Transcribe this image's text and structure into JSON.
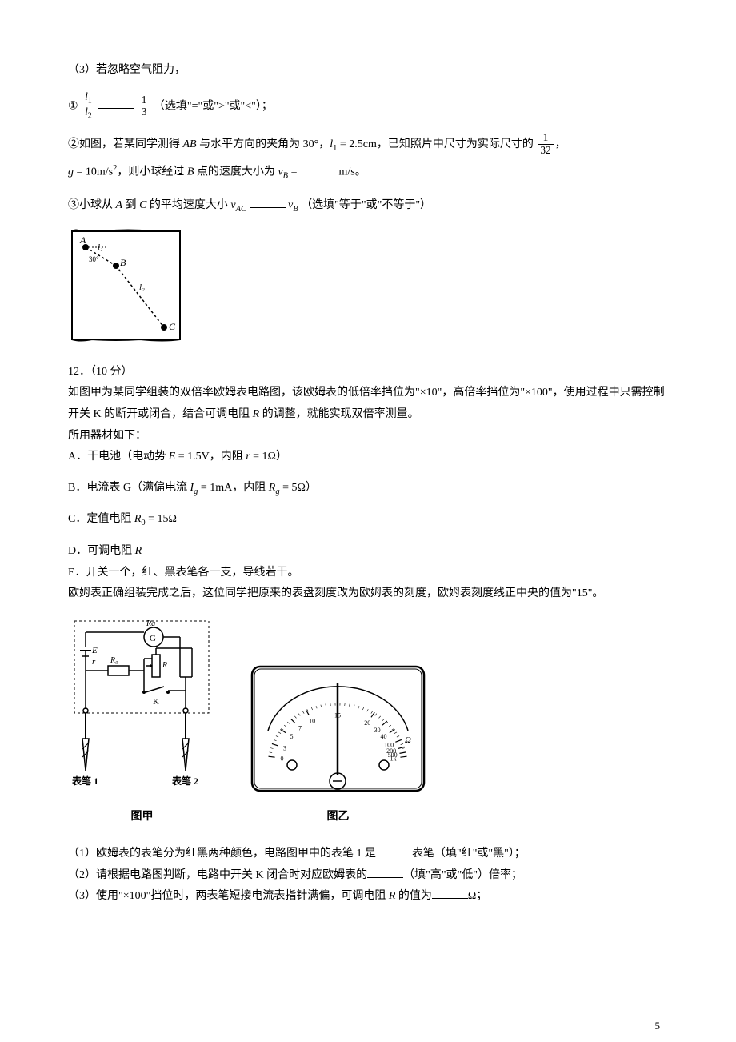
{
  "line3": "（3）若忽略空气阻力，",
  "eq1_prefix": "①",
  "eq1_frac1_num": "l",
  "eq1_frac1_num_sub": "1",
  "eq1_frac1_den": "l",
  "eq1_frac1_den_sub": "2",
  "eq1_frac2_num": "1",
  "eq1_frac2_den": "3",
  "eq1_suffix": "（选填\"=\"或\">\"或\"<\"）；",
  "line2a": "②如图，若某同学测得 ",
  "line2a_ab": "AB",
  "line2a_mid": " 与水平方向的夹角为 30°，",
  "line2a_l1": "l",
  "line2a_l1_sub": "1",
  "line2a_eq": " = 2.5cm",
  "line2a_mid2": "，已知照片中尺寸为实际尺寸的 ",
  "line2a_frac_num": "1",
  "line2a_frac_den": "32",
  "line2a_comma": "，",
  "line2b_g": "g",
  "line2b_geq": " = 10m/s",
  "line2b_gexp": "2",
  "line2b_mid": "，则小球经过 ",
  "line2b_B": "B",
  "line2b_mid2": " 点的速度大小为 ",
  "line2b_vB": "v",
  "line2b_vB_sub": "B",
  "line2b_eq": " = ",
  "line2b_unit": " m/s。",
  "line3a": "③小球从 ",
  "line3a_A": "A",
  "line3a_mid1": " 到 ",
  "line3a_C": "C",
  "line3a_mid2": " 的平均速度大小 ",
  "line3a_vAC": "v",
  "line3a_vAC_sub": "AC",
  "line3a_vB": "v",
  "line3a_vB_sub": "B",
  "line3a_suffix": "（选填\"等于\"或\"不等于\"）",
  "fig1_A": "A",
  "fig1_B": "B",
  "fig1_C": "C",
  "fig1_l1": "l₁",
  "fig1_l2": "l₂",
  "fig1_angle": "30°",
  "q12_title": "12．（10 分）",
  "q12_p1": "如图甲为某同学组装的双倍率欧姆表电路图，该欧姆表的低倍率挡位为\"×10\"，高倍率挡位为\"×100\"，使用过程中只需控制开关 K 的断开或闭合，结合可调电阻 ",
  "q12_p1_R": "R",
  "q12_p1_suffix": " 的调整，就能实现双倍率测量。",
  "q12_p2": "所用器材如下：",
  "q12_A": "A．干电池（电动势 ",
  "q12_A_E": "E",
  "q12_A_Eval": " = 1.5V",
  "q12_A_mid": "，内阻 ",
  "q12_A_r": "r",
  "q12_A_rval": " = 1Ω",
  "q12_A_end": "）",
  "q12_B": "B．电流表 G（满偏电流 ",
  "q12_B_Ig": "I",
  "q12_B_Ig_sub": "g",
  "q12_B_Ival": " = 1mA",
  "q12_B_mid": "，内阻 ",
  "q12_B_Rg": "R",
  "q12_B_Rg_sub": "g",
  "q12_B_Rval": " = 5Ω",
  "q12_B_end": "）",
  "q12_C": "C．定值电阻 ",
  "q12_C_R0": "R",
  "q12_C_R0_sub": "0",
  "q12_C_val": " = 15Ω",
  "q12_D": "D．可调电阻 ",
  "q12_D_R": "R",
  "q12_E": "E．开关一个，红、黑表笔各一支，导线若干。",
  "q12_p3": "欧姆表正确组装完成之后，这位同学把原来的表盘刻度改为欧姆表的刻度，欧姆表刻度线正中央的值为\"15\"。",
  "fig2_label1": "图甲",
  "fig2_label2": "图乙",
  "fig2_pen1": "表笔 1",
  "fig2_pen2": "表笔 2",
  "fig2_E": "E",
  "fig2_r": "r",
  "fig2_R0": "R₀",
  "fig2_R": "R",
  "fig2_Rg": "Rg",
  "fig2_G": "G",
  "fig2_K": "K",
  "dial_ticks": [
    "1k",
    "500",
    "200",
    "100",
    "40",
    "30",
    "20",
    "15",
    "10",
    "7",
    "5",
    "3",
    "0"
  ],
  "dial_unit": "Ω",
  "q12_q1a": "（1）欧姆表的表笔分为红黑两种颜色，电路图甲中的表笔 1 是",
  "q12_q1b": "表笔（填\"红\"或\"黑\"）；",
  "q12_q2a": "（2）请根据电路图判断，电路中开关 K 闭合时对应欧姆表的",
  "q12_q2b": "（填\"高\"或\"低\"）倍率；",
  "q12_q3a": "（3）使用\"×100\"挡位时，两表笔短接电流表指针满偏，可调电阻 ",
  "q12_q3_R": "R",
  "q12_q3b": " 的值为",
  "q12_q3c": "Ω；",
  "page_num": "5"
}
